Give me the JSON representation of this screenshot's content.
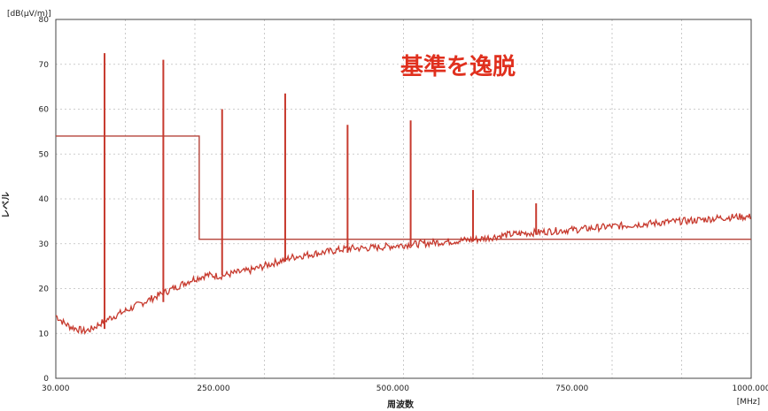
{
  "chart_data": {
    "type": "line",
    "ylabel_unit": "[dB(μV/m)]",
    "ylabel": "レベル",
    "xlabel": "周波数",
    "xlabel_unit": "[MHz]",
    "xlim": [
      30,
      1000
    ],
    "ylim": [
      0,
      80
    ],
    "grid": true,
    "x_ticks": [
      {
        "value": 30,
        "label": "30.000"
      },
      {
        "value": 250,
        "label": "250.000"
      },
      {
        "value": 500,
        "label": "500.000"
      },
      {
        "value": 750,
        "label": "750.000"
      },
      {
        "value": 1000,
        "label": "1000.000"
      }
    ],
    "y_ticks": [
      {
        "value": 0,
        "label": "0"
      },
      {
        "value": 10,
        "label": "10"
      },
      {
        "value": 20,
        "label": "20"
      },
      {
        "value": 30,
        "label": "30"
      },
      {
        "value": 40,
        "label": "40"
      },
      {
        "value": 50,
        "label": "50"
      },
      {
        "value": 60,
        "label": "60"
      },
      {
        "value": 70,
        "label": "70"
      },
      {
        "value": 80,
        "label": "80"
      }
    ],
    "annotation": "基準を逸脱",
    "series": [
      {
        "role": "limit",
        "color": "#b5443a",
        "x": [
          30,
          230,
          230,
          1000
        ],
        "y": [
          54,
          54,
          31,
          31
        ]
      },
      {
        "role": "measurement",
        "color": "#c73a2e",
        "x": [
          30,
          40,
          50,
          60,
          70,
          80,
          90,
          100,
          120,
          140,
          160,
          180,
          200,
          220,
          240,
          260,
          280,
          300,
          320,
          340,
          360,
          380,
          400,
          420,
          440,
          460,
          480,
          500,
          520,
          540,
          560,
          580,
          600,
          620,
          640,
          660,
          680,
          700,
          720,
          740,
          760,
          780,
          800,
          820,
          840,
          860,
          880,
          900,
          920,
          940,
          960,
          980,
          1000
        ],
        "y": [
          14,
          12.5,
          11.5,
          11,
          10.5,
          11,
          12,
          13,
          14.5,
          16,
          17.5,
          19,
          20.5,
          22,
          23,
          22.8,
          23.5,
          24,
          25,
          26,
          27,
          27.5,
          28,
          28.5,
          29,
          29,
          29.2,
          29.5,
          29.8,
          30,
          30.3,
          30.5,
          30.8,
          31,
          31.5,
          32,
          32.3,
          32.5,
          32.8,
          33,
          33.2,
          33.5,
          33.8,
          34,
          34.3,
          34.5,
          34.8,
          35,
          35.2,
          35.5,
          35.8,
          36,
          36
        ]
      }
    ],
    "spikes": [
      {
        "x": 98,
        "y": 72.5,
        "base": 11
      },
      {
        "x": 180,
        "y": 71,
        "base": 17
      },
      {
        "x": 262,
        "y": 60,
        "base": 23
      },
      {
        "x": 350,
        "y": 63.5,
        "base": 26
      },
      {
        "x": 437,
        "y": 56.5,
        "base": 28
      },
      {
        "x": 525,
        "y": 57.5,
        "base": 29.5
      },
      {
        "x": 612,
        "y": 42,
        "base": 30.5
      },
      {
        "x": 700,
        "y": 39,
        "base": 32
      }
    ]
  }
}
